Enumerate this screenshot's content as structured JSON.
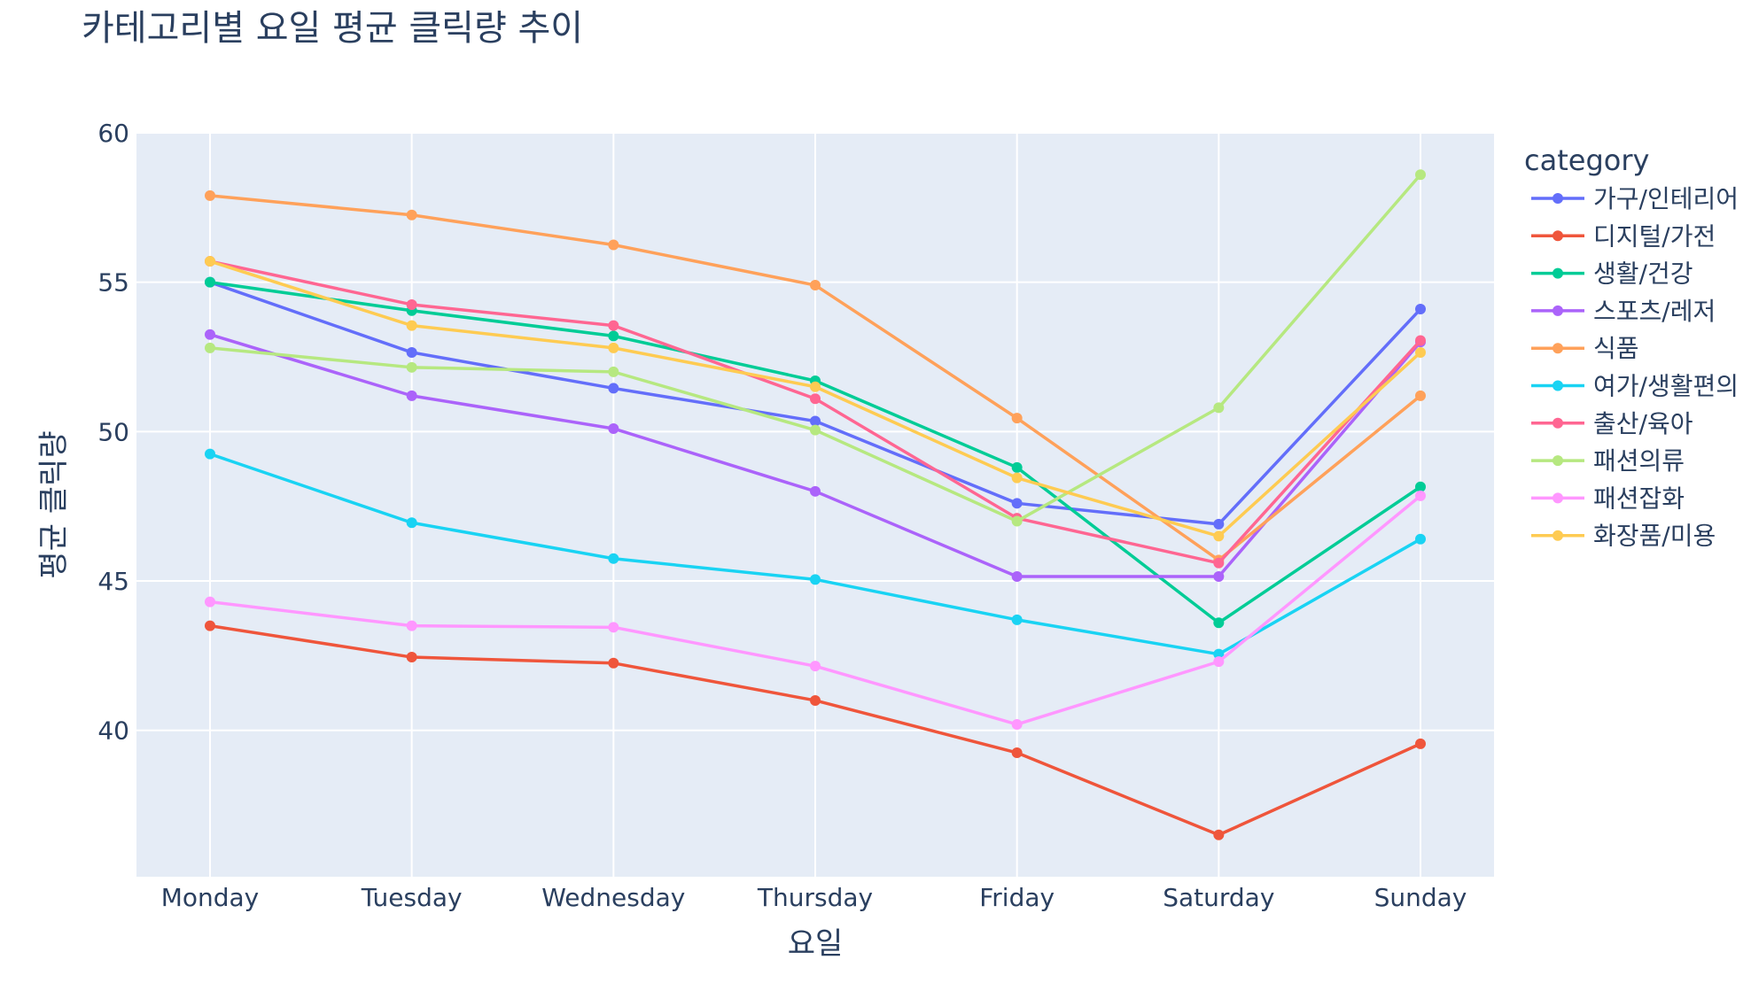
{
  "chart_data": {
    "type": "line",
    "title": "카테고리별 요일 평균 클릭량 추이",
    "xlabel": "요일",
    "ylabel": "평균 클릭량",
    "categories": [
      "Monday",
      "Tuesday",
      "Wednesday",
      "Thursday",
      "Friday",
      "Saturday",
      "Sunday"
    ],
    "ylim": [
      35.1,
      60
    ],
    "yticks": [
      40,
      45,
      50,
      55,
      60
    ],
    "grid": true,
    "legend": {
      "title": "category",
      "position": "right"
    },
    "series": [
      {
        "name": "가구/인테리어",
        "color": "#636efa",
        "values": [
          55.0,
          52.65,
          51.45,
          50.35,
          47.6,
          46.9,
          54.1
        ]
      },
      {
        "name": "디지털/가전",
        "color": "#ef553b",
        "values": [
          43.5,
          42.45,
          42.25,
          41.0,
          39.25,
          36.5,
          39.55
        ]
      },
      {
        "name": "생활/건강",
        "color": "#00cc96",
        "values": [
          55.0,
          54.05,
          53.2,
          51.7,
          48.8,
          43.6,
          48.15
        ]
      },
      {
        "name": "스포츠/레저",
        "color": "#ab63fa",
        "values": [
          53.25,
          51.2,
          50.1,
          48.0,
          45.15,
          45.15,
          53.0
        ]
      },
      {
        "name": "식품",
        "color": "#ffa15a",
        "values": [
          57.9,
          57.25,
          56.25,
          54.9,
          50.45,
          45.7,
          51.2
        ]
      },
      {
        "name": "여가/생활편의",
        "color": "#19d3f3",
        "values": [
          49.25,
          46.95,
          45.75,
          45.05,
          43.7,
          42.55,
          46.4
        ]
      },
      {
        "name": "출산/육아",
        "color": "#ff6692",
        "values": [
          55.7,
          54.25,
          53.55,
          51.1,
          47.1,
          45.6,
          53.05
        ]
      },
      {
        "name": "패션의류",
        "color": "#b6e880",
        "values": [
          52.8,
          52.15,
          52.0,
          50.05,
          47.0,
          50.8,
          58.6
        ]
      },
      {
        "name": "패션잡화",
        "color": "#ff97ff",
        "values": [
          44.3,
          43.5,
          43.45,
          42.15,
          40.2,
          42.3,
          47.85
        ]
      },
      {
        "name": "화장품/미용",
        "color": "#fecb52",
        "values": [
          55.7,
          53.55,
          52.8,
          51.5,
          48.45,
          46.5,
          52.65
        ]
      }
    ]
  }
}
